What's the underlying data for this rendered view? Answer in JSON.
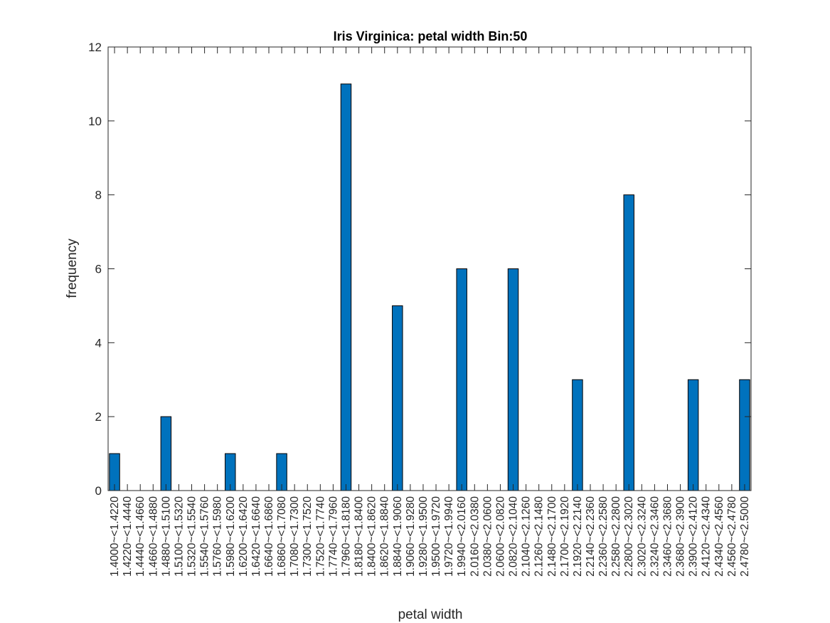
{
  "chart_data": {
    "type": "bar",
    "title": "Iris Virginica: petal width Bin:50",
    "xlabel": "petal width",
    "ylabel": "frequency",
    "ylim": [
      0,
      12
    ],
    "yticks": [
      "0",
      "2",
      "4",
      "6",
      "8",
      "10",
      "12"
    ],
    "bar_color": "#0072BD",
    "grid": false,
    "categories": [
      "1.4000~<1.4220",
      "1.4220~<1.4440",
      "1.4440~<1.4660",
      "1.4660~<1.4880",
      "1.4880~<1.5100",
      "1.5100~<1.5320",
      "1.5320~<1.5540",
      "1.5540~<1.5760",
      "1.5760~<1.5980",
      "1.5980~<1.6200",
      "1.6200~<1.6420",
      "1.6420~<1.6640",
      "1.6640~<1.6860",
      "1.6860~<1.7080",
      "1.7080~<1.7300",
      "1.7300~<1.7520",
      "1.7520~<1.7740",
      "1.7740~<1.7960",
      "1.7960~<1.8180",
      "1.8180~<1.8400",
      "1.8400~<1.8620",
      "1.8620~<1.8840",
      "1.8840~<1.9060",
      "1.9060~<1.9280",
      "1.9280~<1.9500",
      "1.9500~<1.9720",
      "1.9720~<1.9940",
      "1.9940~<2.0160",
      "2.0160~<2.0380",
      "2.0380~<2.0600",
      "2.0600~<2.0820",
      "2.0820~<2.1040",
      "2.1040~<2.1260",
      "2.1260~<2.1480",
      "2.1480~<2.1700",
      "2.1700~<2.1920",
      "2.1920~<2.2140",
      "2.2140~<2.2360",
      "2.2360~<2.2580",
      "2.2580~<2.2800",
      "2.2800~<2.3020",
      "2.3020~<2.3240",
      "2.3240~<2.3460",
      "2.3460~<2.3680",
      "2.3680~<2.3900",
      "2.3900~<2.4120",
      "2.4120~<2.4340",
      "2.4340~<2.4560",
      "2.4560~<2.4780",
      "2.4780~<2.5000"
    ],
    "values": [
      1,
      0,
      0,
      0,
      2,
      0,
      0,
      0,
      0,
      1,
      0,
      0,
      0,
      1,
      0,
      0,
      0,
      0,
      11,
      0,
      0,
      0,
      5,
      0,
      0,
      0,
      0,
      6,
      0,
      0,
      0,
      6,
      0,
      0,
      0,
      0,
      3,
      0,
      0,
      0,
      8,
      0,
      0,
      0,
      0,
      3,
      0,
      0,
      0,
      3
    ]
  }
}
